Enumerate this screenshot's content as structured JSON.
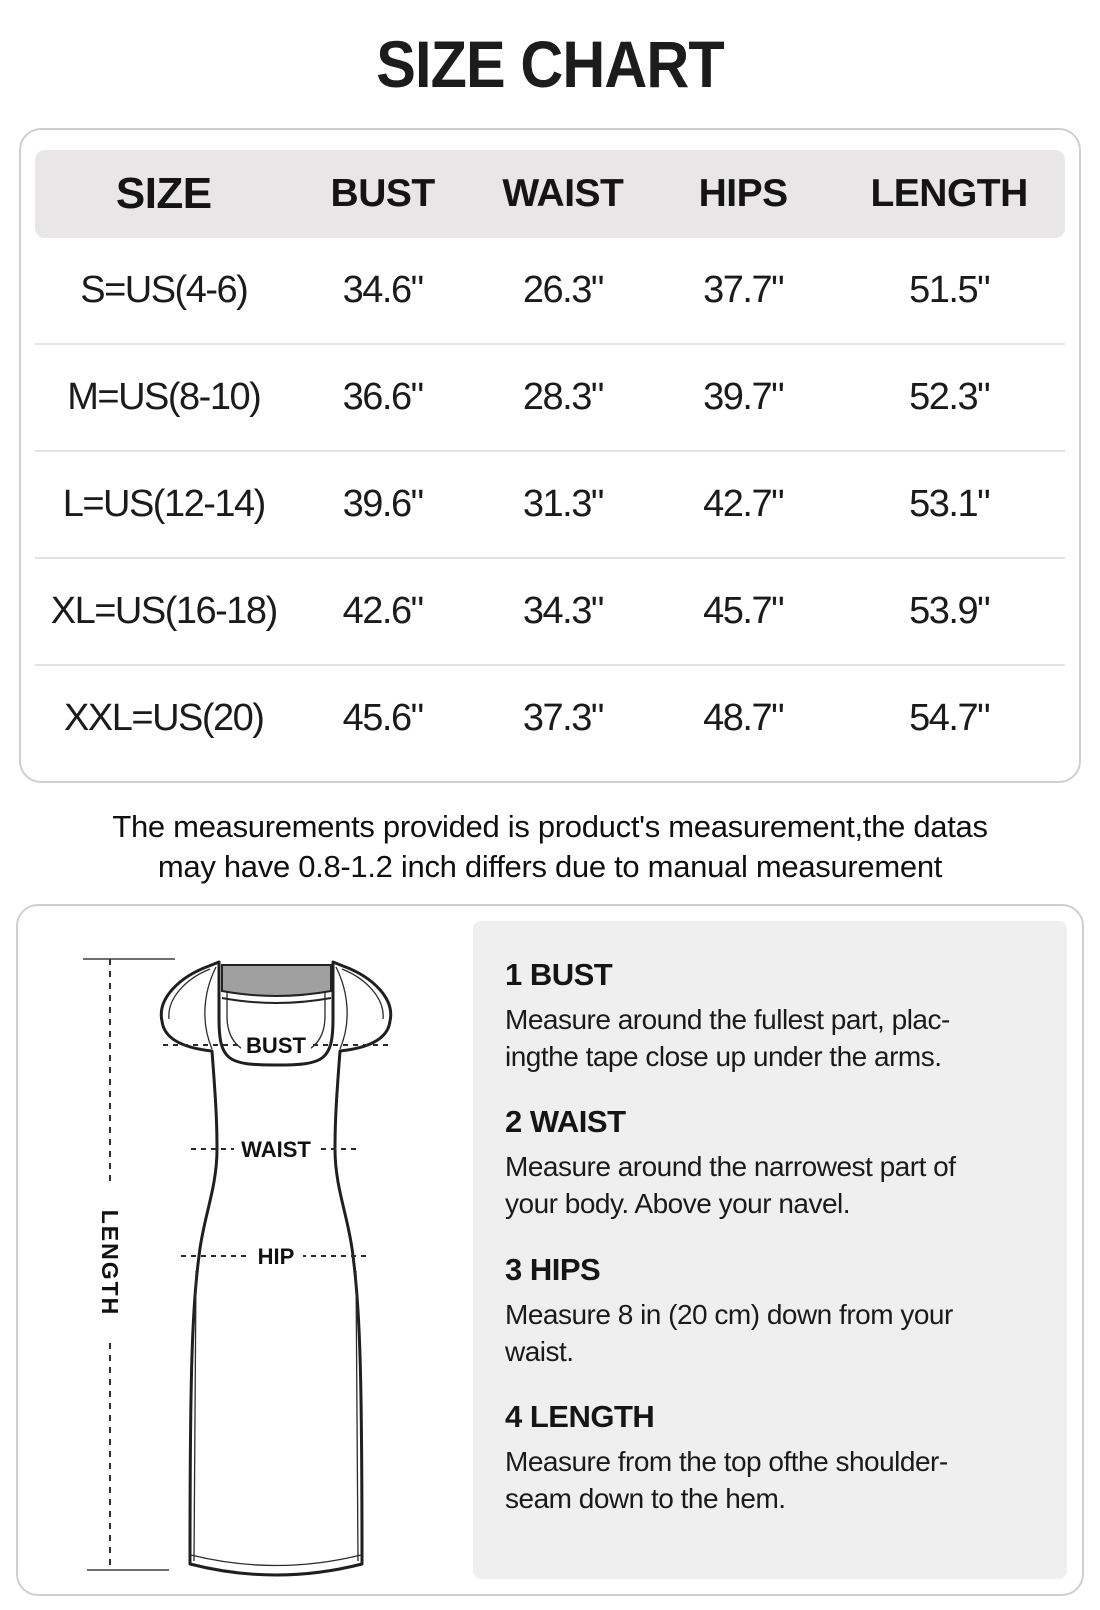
{
  "title": "SIZE CHART",
  "table": {
    "headers": [
      "SIZE",
      "BUST",
      "WAIST",
      "HIPS",
      "LENGTH"
    ],
    "rows": [
      [
        "S=US(4-6)",
        "34.6\"",
        "26.3\"",
        "37.7\"",
        "51.5\""
      ],
      [
        "M=US(8-10)",
        "36.6\"",
        "28.3\"",
        "39.7\"",
        "52.3\""
      ],
      [
        "L=US(12-14)",
        "39.6\"",
        "31.3\"",
        "42.7\"",
        "53.1\""
      ],
      [
        "XL=US(16-18)",
        "42.6\"",
        "34.3\"",
        "45.7\"",
        "53.9\""
      ],
      [
        "XXL=US(20)",
        "45.6\"",
        "37.3\"",
        "48.7\"",
        "54.7\""
      ]
    ]
  },
  "note": "The measurements provided is product's  measurement,the datas\nmay have 0.8-1.2  inch differs due to manual measurement",
  "diagram": {
    "labels": {
      "bust": "BUST",
      "waist": "WAIST",
      "hip": "HIP",
      "length": "LENGTH"
    }
  },
  "instructions": [
    {
      "heading": "1 BUST",
      "body": "Measure around the fullest part, plac-\ningthe tape close up under the arms."
    },
    {
      "heading": "2 WAIST",
      "body": "Measure around the narrowest part of\nyour body. Above your navel."
    },
    {
      "heading": "3 HIPS",
      "body": " Measure 8 in (20 cm) down from your\nwaist."
    },
    {
      "heading": "4 LENGTH",
      "body": "Measure from the top ofthe shoulder-\nseam down to the hem."
    }
  ],
  "colors": {
    "header_bg": "#e8e6e7",
    "panel_bg": "#efefef",
    "card_border": "#cfcfcf",
    "row_line": "#e3e3e3",
    "band_gray": "#a0a0a0",
    "outline": "#1f1f1f"
  }
}
